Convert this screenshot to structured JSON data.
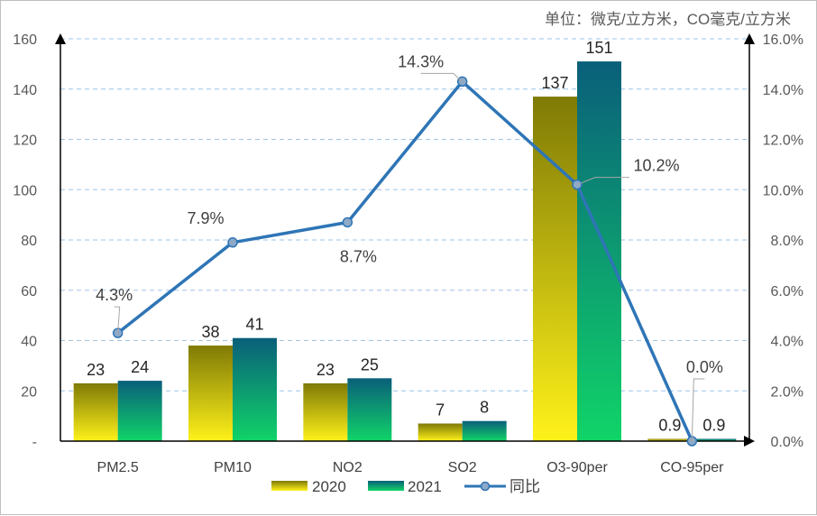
{
  "chart_data": {
    "type": "bar+line",
    "unit_note": "单位：微克/立方米，CO毫克/立方米",
    "categories": [
      "PM2.5",
      "PM10",
      "NO2",
      "SO2",
      "O3-90per",
      "CO-95per"
    ],
    "series": [
      {
        "name": "2020",
        "type": "bar",
        "values": [
          23,
          38,
          23,
          7,
          137,
          0.9
        ],
        "value_labels": [
          "23",
          "38",
          "23",
          "7",
          "137",
          "0.9"
        ]
      },
      {
        "name": "2021",
        "type": "bar",
        "values": [
          24,
          41,
          25,
          8,
          151,
          0.9
        ],
        "value_labels": [
          "24",
          "41",
          "25",
          "8",
          "151",
          "0.9"
        ]
      },
      {
        "name": "同比",
        "type": "line",
        "axis": "right",
        "values": [
          4.3,
          7.9,
          8.7,
          14.3,
          10.2,
          0.0
        ],
        "value_labels": [
          "4.3%",
          "7.9%",
          "8.7%",
          "14.3%",
          "10.2%",
          "0.0%"
        ]
      }
    ],
    "left_axis": {
      "ylim": [
        0,
        160
      ],
      "ticks": [
        "-",
        "20",
        "40",
        "60",
        "80",
        "100",
        "120",
        "140",
        "160"
      ]
    },
    "right_axis": {
      "ylim": [
        0,
        16
      ],
      "ticks": [
        "0.0%",
        "2.0%",
        "4.0%",
        "6.0%",
        "8.0%",
        "10.0%",
        "12.0%",
        "14.0%",
        "16.0%"
      ]
    },
    "grid": true,
    "legend_position": "bottom-center",
    "colors": {
      "bar2020_top": "#7f7a06",
      "bar2020_bottom": "#fff21a",
      "bar2021_top": "#0a5f7a",
      "bar2021_bottom": "#10d468",
      "line": "#2e75b6",
      "marker": "#8ea9c8",
      "grid": "#9dc3e6"
    }
  }
}
